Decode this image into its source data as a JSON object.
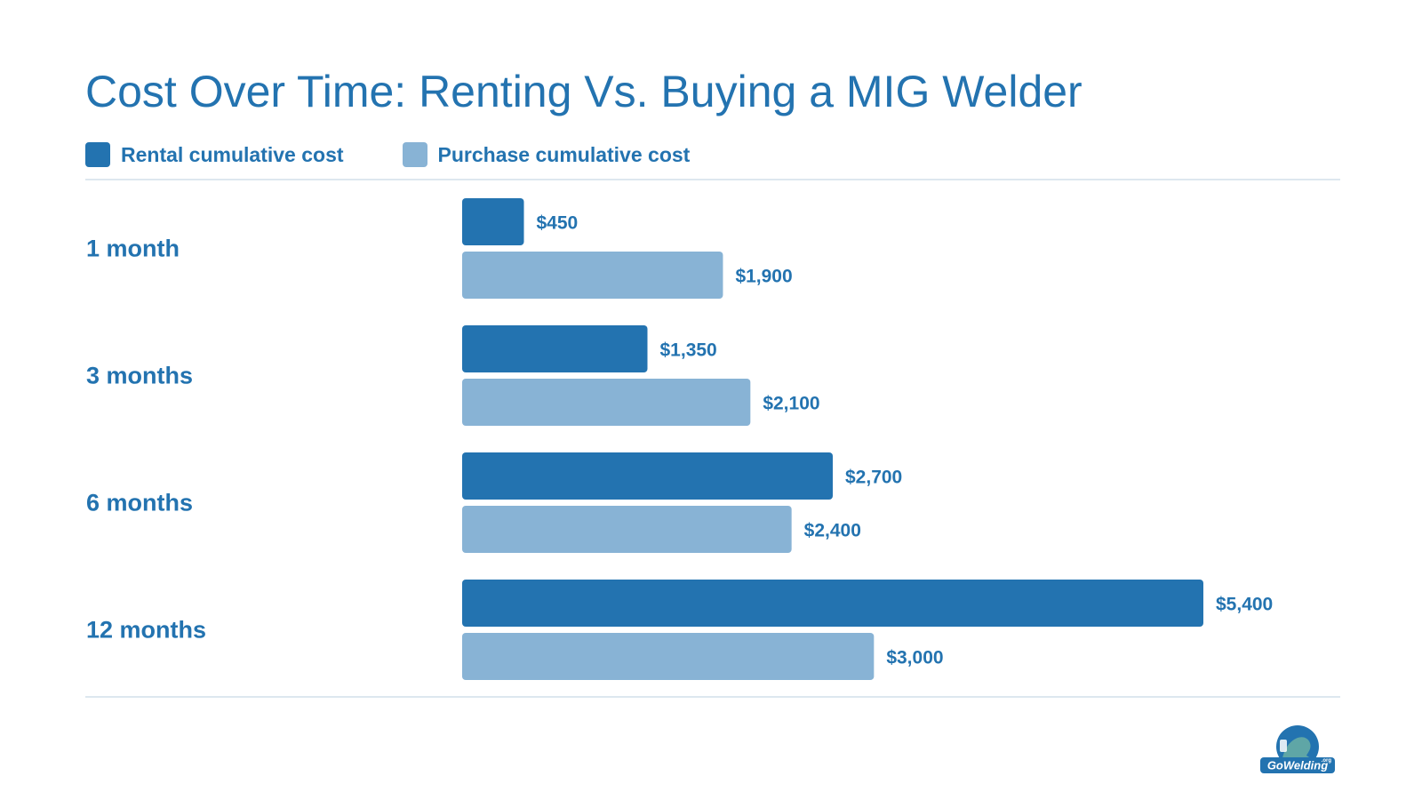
{
  "colors": {
    "accent": "#2373b0",
    "rental": "#2373b0",
    "purchase": "#88b3d5",
    "rule": "#dde7ef"
  },
  "chart_data": {
    "type": "bar",
    "orientation": "horizontal",
    "title": "Cost Over Time: Renting Vs. Buying a MIG Welder",
    "categories": [
      "1 month",
      "3 months",
      "6 months",
      "12 months"
    ],
    "series": [
      {
        "name": "Rental cumulative cost",
        "color": "#2373b0",
        "values": [
          450,
          1350,
          2700,
          5400
        ],
        "labels": [
          "$450",
          "$1,350",
          "$2,700",
          "$5,400"
        ]
      },
      {
        "name": "Purchase cumulative cost",
        "color": "#88b3d5",
        "values": [
          1900,
          2100,
          2400,
          3000
        ],
        "labels": [
          "$1,900",
          "$2,100",
          "$2,400",
          "$3,000"
        ]
      }
    ],
    "xlim": [
      0,
      5400
    ],
    "grid": false,
    "legend_position": "top-left"
  },
  "logo": {
    "text": "GoWelding",
    "suffix": ".org",
    "icon": "welder-mascot-icon"
  }
}
